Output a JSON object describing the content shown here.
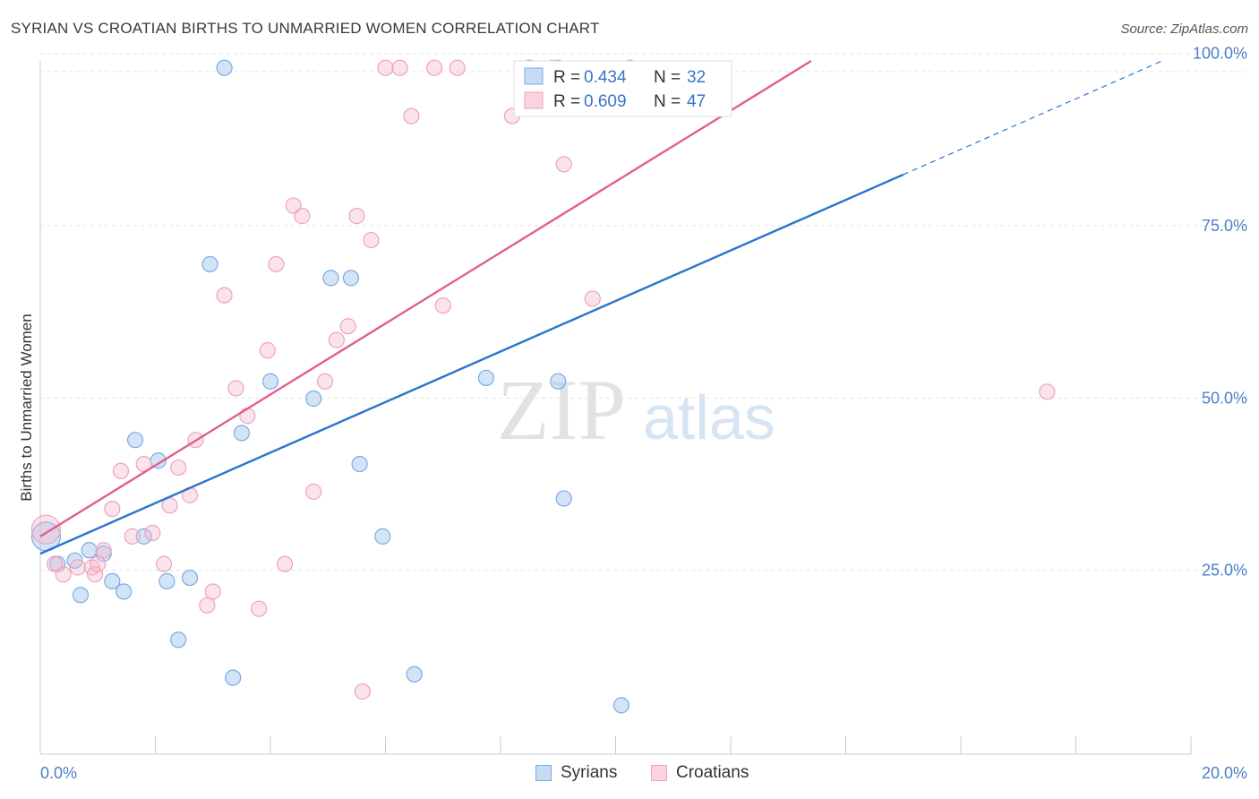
{
  "title": "SYRIAN VS CROATIAN BIRTHS TO UNMARRIED WOMEN CORRELATION CHART",
  "source": "Source: ZipAtlas.com",
  "watermark": {
    "zip": "ZIP",
    "atlas": "atlas"
  },
  "stats_legend": [
    {
      "r_label": "R =",
      "r_value": "0.434",
      "n_label": "N =",
      "n_value": "32"
    },
    {
      "r_label": "R =",
      "r_value": "0.609",
      "n_label": "N =",
      "n_value": "47"
    }
  ],
  "bottom_legend": [
    "Syrians",
    "Croatians"
  ],
  "chart_data": {
    "type": "scatter",
    "title": "SYRIAN VS CROATIAN BIRTHS TO UNMARRIED WOMEN CORRELATION CHART",
    "xlabel": "",
    "ylabel": "Births to Unmarried Women",
    "xlim": [
      0,
      20
    ],
    "ylim": [
      3,
      101
    ],
    "x_tick_labels": [
      "0.0%",
      "20.0%"
    ],
    "y_ticks": [
      25,
      50,
      75,
      100
    ],
    "y_tick_labels": [
      "25.0%",
      "50.0%",
      "75.0%",
      "100.0%"
    ],
    "grid": true,
    "colors": {
      "Syrians": "#7aaae6",
      "Croatians": "#f0a2bd",
      "Syrians_line": "#2874d0",
      "Croatians_line": "#e0608a",
      "tick_text": "#4a80c8"
    },
    "series": [
      {
        "name": "Syrians",
        "points": [
          [
            0.1,
            32.0
          ],
          [
            0.3,
            28.0
          ],
          [
            0.6,
            28.5
          ],
          [
            0.7,
            23.5
          ],
          [
            0.85,
            30.0
          ],
          [
            1.1,
            29.5
          ],
          [
            1.25,
            25.5
          ],
          [
            1.45,
            24.0
          ],
          [
            1.65,
            46.0
          ],
          [
            1.8,
            32.0
          ],
          [
            2.05,
            43.0
          ],
          [
            2.2,
            25.5
          ],
          [
            2.4,
            17.0
          ],
          [
            2.6,
            26.0
          ],
          [
            2.95,
            71.5
          ],
          [
            3.2,
            100.0
          ],
          [
            3.35,
            11.5
          ],
          [
            3.5,
            47.0
          ],
          [
            4.0,
            54.5
          ],
          [
            4.75,
            52.0
          ],
          [
            5.05,
            69.5
          ],
          [
            5.4,
            69.5
          ],
          [
            5.55,
            42.5
          ],
          [
            5.95,
            32.0
          ],
          [
            6.5,
            12.0
          ],
          [
            7.75,
            55.0
          ],
          [
            8.5,
            100.0
          ],
          [
            9.0,
            100.0
          ],
          [
            9.0,
            54.5
          ],
          [
            9.1,
            37.5
          ],
          [
            10.1,
            7.5
          ],
          [
            10.25,
            100.0
          ]
        ]
      },
      {
        "name": "Croatians",
        "points": [
          [
            0.1,
            33.0
          ],
          [
            0.25,
            28.0
          ],
          [
            0.4,
            26.5
          ],
          [
            0.65,
            27.5
          ],
          [
            0.9,
            27.5
          ],
          [
            0.95,
            26.5
          ],
          [
            1.0,
            28.0
          ],
          [
            1.1,
            30.0
          ],
          [
            1.25,
            36.0
          ],
          [
            1.4,
            41.5
          ],
          [
            1.6,
            32.0
          ],
          [
            1.8,
            42.5
          ],
          [
            1.95,
            32.5
          ],
          [
            2.15,
            28.0
          ],
          [
            2.25,
            36.5
          ],
          [
            2.4,
            42.0
          ],
          [
            2.6,
            38.0
          ],
          [
            2.7,
            46.0
          ],
          [
            2.9,
            22.0
          ],
          [
            3.0,
            24.0
          ],
          [
            3.2,
            67.0
          ],
          [
            3.4,
            53.5
          ],
          [
            3.6,
            49.5
          ],
          [
            3.8,
            21.5
          ],
          [
            3.95,
            59.0
          ],
          [
            4.1,
            71.5
          ],
          [
            4.25,
            28.0
          ],
          [
            4.4,
            80.0
          ],
          [
            4.55,
            78.5
          ],
          [
            4.75,
            38.5
          ],
          [
            4.95,
            54.5
          ],
          [
            5.15,
            60.5
          ],
          [
            5.35,
            62.5
          ],
          [
            5.5,
            78.5
          ],
          [
            5.6,
            9.5
          ],
          [
            5.75,
            75.0
          ],
          [
            6.0,
            100.0
          ],
          [
            6.25,
            100.0
          ],
          [
            6.45,
            93.0
          ],
          [
            6.85,
            100.0
          ],
          [
            7.0,
            65.5
          ],
          [
            7.25,
            100.0
          ],
          [
            8.2,
            93.0
          ],
          [
            9.1,
            86.0
          ],
          [
            9.6,
            66.5
          ],
          [
            17.5,
            53.0
          ],
          [
            8.9,
            100.0
          ]
        ]
      }
    ],
    "trendlines": [
      {
        "name": "Syrians",
        "start": [
          0,
          29.5
        ],
        "solid_end": [
          15.0,
          84.5
        ],
        "dashed_end": [
          19.5,
          101.0
        ]
      },
      {
        "name": "Croatians",
        "start": [
          0,
          32.0
        ],
        "end": [
          13.4,
          101.0
        ]
      }
    ]
  }
}
